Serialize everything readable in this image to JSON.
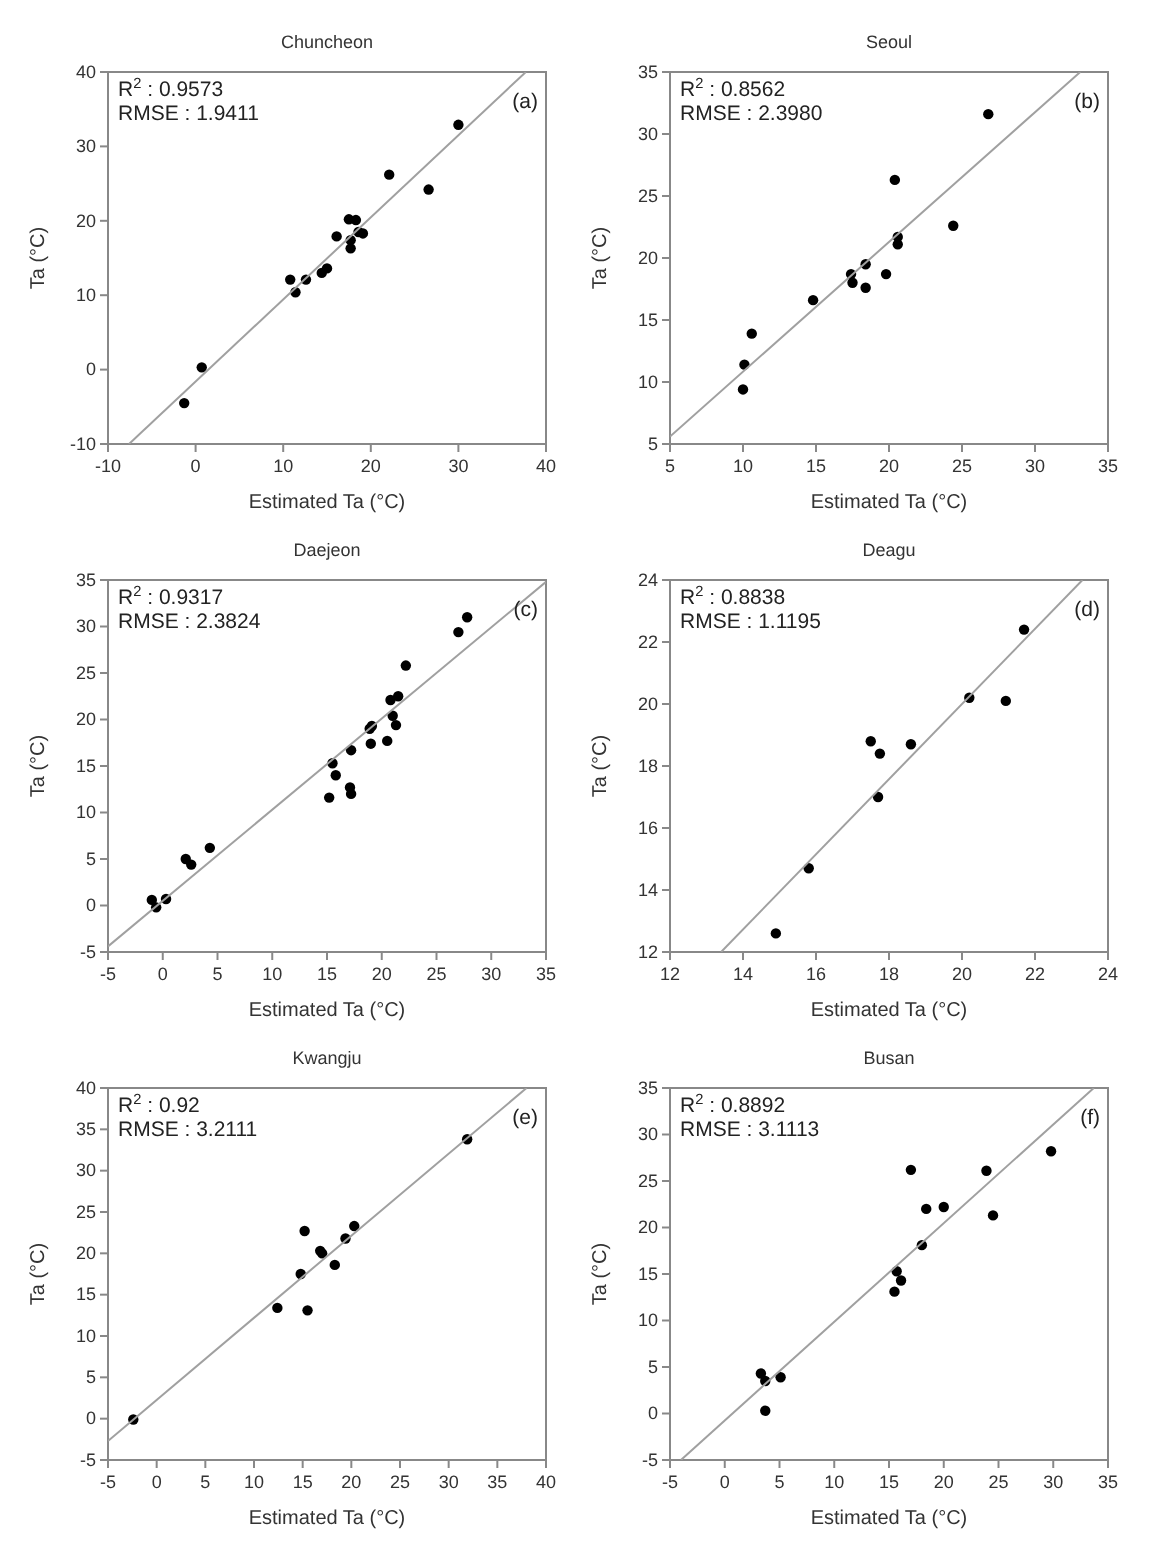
{
  "chart_data": [
    {
      "type": "scatter",
      "title": "Chuncheon",
      "xlabel": "Estimated Ta (°C)",
      "ylabel": "Ta (°C)",
      "annotations": [
        "R$^{2}$ : 0.9573",
        "RMSE : 1.9411",
        "(a)"
      ],
      "xlim": [
        -10,
        40
      ],
      "ylim": [
        -10,
        40
      ],
      "xticks": [
        -10,
        0,
        10,
        20,
        30,
        40
      ],
      "yticks": [
        -10,
        0,
        10,
        20,
        30,
        40
      ],
      "grid": false,
      "series": [
        {
          "marker": "circle",
          "color": "#000000",
          "x": [
            -1.3,
            0.7,
            10.8,
            11.4,
            12.6,
            14.4,
            15.0,
            16.1,
            17.5,
            17.7,
            17.7,
            18.3,
            18.6,
            19.1,
            22.1,
            26.6,
            30.0
          ],
          "values": [
            -4.5,
            0.3,
            12.1,
            10.4,
            12.1,
            13.0,
            13.6,
            17.9,
            20.2,
            17.4,
            16.3,
            20.1,
            18.5,
            18.3,
            26.2,
            24.2,
            32.9
          ]
        },
        {
          "type": "line",
          "marker": "none",
          "line_style": "solid",
          "color": "#a0a0a0",
          "x": [
            -7.6,
            37.7
          ],
          "values": [
            -10,
            40
          ]
        }
      ]
    },
    {
      "type": "scatter",
      "title": "Seoul",
      "xlabel": "Estimated Ta (°C)",
      "ylabel": "Ta (°C)",
      "annotations": [
        "R$^{2}$ : 0.8562",
        "RMSE : 2.3980",
        "(b)"
      ],
      "xlim": [
        5,
        35
      ],
      "ylim": [
        5,
        35
      ],
      "xticks": [
        5,
        10,
        15,
        20,
        25,
        30,
        35
      ],
      "yticks": [
        5,
        10,
        15,
        20,
        25,
        30,
        35
      ],
      "grid": false,
      "series": [
        {
          "marker": "circle",
          "color": "#000000",
          "x": [
            10.0,
            10.1,
            10.6,
            14.8,
            17.4,
            17.5,
            18.4,
            18.4,
            19.8,
            20.4,
            20.6,
            20.6,
            24.4,
            26.8
          ],
          "values": [
            9.4,
            11.4,
            13.9,
            16.6,
            18.7,
            18.0,
            17.6,
            19.5,
            18.7,
            26.3,
            21.7,
            21.1,
            22.6,
            31.6
          ]
        },
        {
          "type": "line",
          "marker": "none",
          "line_style": "solid",
          "color": "#a0a0a0",
          "x": [
            5,
            33.1
          ],
          "values": [
            5.6,
            35
          ]
        }
      ]
    },
    {
      "type": "scatter",
      "title": "Daejeon",
      "xlabel": "Estimated Ta (°C)",
      "ylabel": "Ta (°C)",
      "annotations": [
        "R$^{2}$ : 0.9317",
        "RMSE : 2.3824",
        "(c)"
      ],
      "xlim": [
        -5,
        35
      ],
      "ylim": [
        -5,
        35
      ],
      "xticks": [
        -5,
        0,
        5,
        10,
        15,
        20,
        25,
        30,
        35
      ],
      "yticks": [
        -5,
        0,
        5,
        10,
        15,
        20,
        25,
        30,
        35
      ],
      "grid": false,
      "series": [
        {
          "marker": "circle",
          "color": "#000000",
          "x": [
            -1.0,
            -0.6,
            0.3,
            2.1,
            2.6,
            4.3,
            15.2,
            15.5,
            15.8,
            17.1,
            17.2,
            17.2,
            19.0,
            18.9,
            19.1,
            20.5,
            20.8,
            21.0,
            21.3,
            21.5,
            22.2,
            27.0,
            27.8
          ],
          "values": [
            0.6,
            -0.2,
            0.7,
            5.0,
            4.4,
            6.2,
            11.6,
            15.3,
            14.0,
            12.7,
            12.0,
            16.7,
            17.4,
            19.0,
            19.3,
            17.7,
            22.1,
            20.4,
            19.4,
            22.5,
            25.8,
            29.4,
            31.0
          ]
        },
        {
          "type": "line",
          "marker": "none",
          "line_style": "solid",
          "color": "#a0a0a0",
          "x": [
            -5,
            35
          ],
          "values": [
            -4.4,
            34.8
          ]
        }
      ]
    },
    {
      "type": "scatter",
      "title": "Deagu",
      "xlabel": "Estimated Ta (°C)",
      "ylabel": "Ta (°C)",
      "annotations": [
        "R$^{2}$ : 0.8838",
        "RMSE : 1.1195",
        "(d)"
      ],
      "xlim": [
        12,
        24
      ],
      "ylim": [
        12,
        24
      ],
      "xticks": [
        12,
        14,
        16,
        18,
        20,
        22,
        24
      ],
      "yticks": [
        12,
        14,
        16,
        18,
        20,
        22,
        24
      ],
      "grid": false,
      "series": [
        {
          "marker": "circle",
          "color": "#000000",
          "x": [
            14.9,
            15.8,
            17.5,
            17.75,
            17.7,
            18.6,
            20.2,
            21.2,
            21.7
          ],
          "values": [
            12.6,
            14.7,
            18.8,
            18.4,
            17.0,
            18.7,
            20.2,
            20.1,
            22.4
          ]
        },
        {
          "type": "line",
          "marker": "none",
          "line_style": "solid",
          "color": "#a0a0a0",
          "x": [
            13.4,
            23.3
          ],
          "values": [
            12,
            24
          ]
        }
      ]
    },
    {
      "type": "scatter",
      "title": "Kwangju",
      "xlabel": "Estimated Ta (°C)",
      "ylabel": "Ta (°C)",
      "annotations": [
        "R$^{2}$ : 0.92",
        "RMSE : 3.2111",
        "(e)"
      ],
      "xlim": [
        -5,
        40
      ],
      "ylim": [
        -5,
        40
      ],
      "xticks": [
        -5,
        0,
        5,
        10,
        15,
        20,
        25,
        30,
        35,
        40
      ],
      "yticks": [
        -5,
        0,
        5,
        10,
        15,
        20,
        25,
        30,
        35,
        40
      ],
      "grid": false,
      "series": [
        {
          "marker": "circle",
          "color": "#000000",
          "x": [
            -2.4,
            12.4,
            14.8,
            15.2,
            15.5,
            16.8,
            17.0,
            18.3,
            19.4,
            20.3,
            31.9
          ],
          "values": [
            -0.1,
            13.4,
            17.5,
            22.7,
            13.1,
            20.3,
            20.0,
            18.6,
            21.8,
            23.3,
            33.8
          ]
        },
        {
          "type": "line",
          "marker": "none",
          "line_style": "solid",
          "color": "#a0a0a0",
          "x": [
            -5,
            38.0
          ],
          "values": [
            -2.7,
            40
          ]
        }
      ]
    },
    {
      "type": "scatter",
      "title": "Busan",
      "xlabel": "Estimated Ta (°C)",
      "ylabel": "Ta (°C)",
      "annotations": [
        "R$^{2}$ : 0.8892",
        "RMSE : 3.1113",
        "(f)"
      ],
      "xlim": [
        -5,
        35
      ],
      "ylim": [
        -5,
        35
      ],
      "xticks": [
        -5,
        0,
        5,
        10,
        15,
        20,
        25,
        30,
        35
      ],
      "yticks": [
        -5,
        0,
        5,
        10,
        15,
        20,
        25,
        30,
        35
      ],
      "grid": false,
      "series": [
        {
          "marker": "circle",
          "color": "#000000",
          "x": [
            3.3,
            3.7,
            3.7,
            5.1,
            15.5,
            15.7,
            16.1,
            17.0,
            18.0,
            18.4,
            20.0,
            23.9,
            24.5,
            29.8
          ],
          "values": [
            4.3,
            3.5,
            0.3,
            3.9,
            13.1,
            15.3,
            14.3,
            26.2,
            18.1,
            22.0,
            22.2,
            26.1,
            21.3,
            28.2
          ]
        },
        {
          "type": "line",
          "marker": "none",
          "line_style": "solid",
          "color": "#a0a0a0",
          "x": [
            -4.0,
            33.7
          ],
          "values": [
            -5,
            35
          ]
        }
      ]
    }
  ]
}
